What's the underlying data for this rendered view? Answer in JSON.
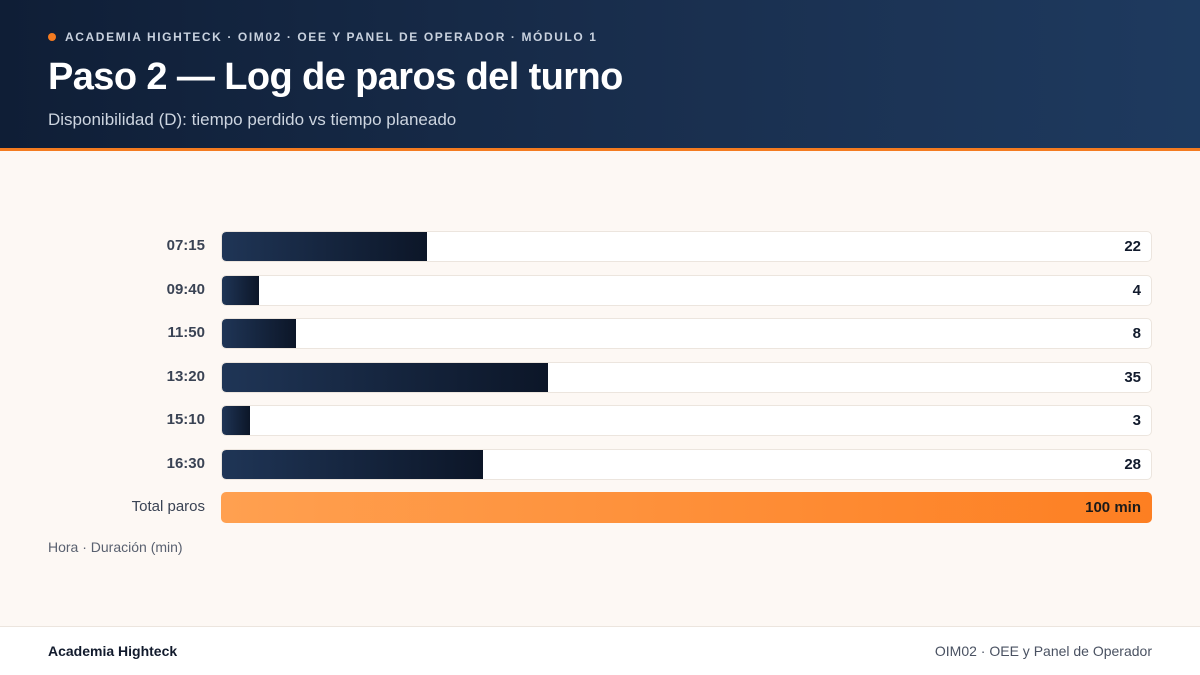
{
  "header": {
    "eyebrow": "ACADEMIA HIGHTECK · OIM02 · OEE Y PANEL DE OPERADOR · MÓDULO 1",
    "title": "Paso 2 — Log de paros del turno",
    "subtitle": "Disponibilidad (D): tiempo perdido vs tiempo planeado"
  },
  "chart_data": {
    "type": "bar",
    "orientation": "horizontal",
    "categories": [
      "07:15",
      "09:40",
      "11:50",
      "13:20",
      "15:10",
      "16:30"
    ],
    "values": [
      22,
      4,
      8,
      35,
      3,
      28
    ],
    "xlim": [
      0,
      100
    ],
    "total": {
      "label": "Total paros",
      "value": 100,
      "value_label": "100 min"
    },
    "caption": "Hora · Duración (min)",
    "colors": {
      "bar": "#1f3556",
      "total": "#fd7f22",
      "accent": "#f47b20"
    }
  },
  "footer": {
    "left": "Academia Highteck",
    "right": "OIM02 · OEE y Panel de Operador"
  }
}
